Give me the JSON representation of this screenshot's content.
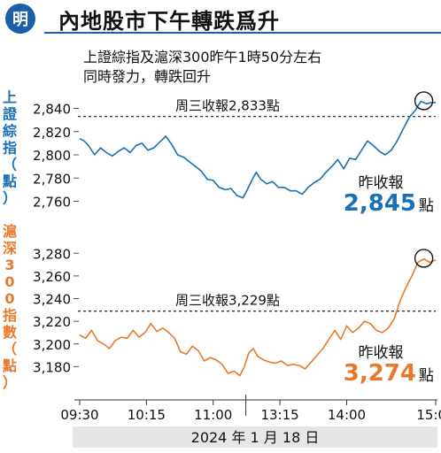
{
  "header": {
    "logo_text": "明",
    "title": "內地股市下午轉跌爲升"
  },
  "subtitle": {
    "line1": "上證綜指及滬深300昨午1時50分左右",
    "line2": "同時發力，轉跌回升"
  },
  "colors": {
    "blue": "#1a6fb5",
    "orange": "#e8792b",
    "brand": "#1a5fa8"
  },
  "chart_data": [
    {
      "type": "line",
      "series_label": "上證綜指（點）",
      "x_time": [
        "09:30",
        "10:15",
        "11:00",
        "13:15",
        "14:00",
        "15:00"
      ],
      "ylim": [
        2752,
        2848
      ],
      "yticks": [
        2840,
        2820,
        2800,
        2780,
        2760
      ],
      "prev_close_value": 2833,
      "prev_close_label": "周三收報2,833點",
      "close_caption": "昨收報",
      "close_value": "2,845",
      "close_unit": "點",
      "points": [
        [
          0,
          2814
        ],
        [
          3,
          2812
        ],
        [
          6,
          2808
        ],
        [
          10,
          2800
        ],
        [
          14,
          2806
        ],
        [
          18,
          2802
        ],
        [
          22,
          2799
        ],
        [
          26,
          2803
        ],
        [
          30,
          2806
        ],
        [
          34,
          2802
        ],
        [
          38,
          2808
        ],
        [
          42,
          2810
        ],
        [
          46,
          2804
        ],
        [
          50,
          2806
        ],
        [
          54,
          2811
        ],
        [
          58,
          2816
        ],
        [
          62,
          2809
        ],
        [
          66,
          2800
        ],
        [
          70,
          2798
        ],
        [
          74,
          2794
        ],
        [
          78,
          2790
        ],
        [
          82,
          2786
        ],
        [
          86,
          2779
        ],
        [
          90,
          2778
        ],
        [
          94,
          2772
        ],
        [
          98,
          2770
        ],
        [
          102,
          2771
        ],
        [
          106,
          2765
        ],
        [
          110,
          2763
        ],
        [
          113,
          2770
        ],
        [
          116,
          2778
        ],
        [
          119,
          2785
        ],
        [
          122,
          2779
        ],
        [
          126,
          2775
        ],
        [
          130,
          2777
        ],
        [
          134,
          2772
        ],
        [
          138,
          2772
        ],
        [
          142,
          2769
        ],
        [
          146,
          2769
        ],
        [
          150,
          2766
        ],
        [
          154,
          2772
        ],
        [
          158,
          2776
        ],
        [
          162,
          2779
        ],
        [
          166,
          2785
        ],
        [
          170,
          2790
        ],
        [
          174,
          2796
        ],
        [
          178,
          2788
        ],
        [
          182,
          2797
        ],
        [
          186,
          2796
        ],
        [
          190,
          2804
        ],
        [
          194,
          2812
        ],
        [
          198,
          2808
        ],
        [
          202,
          2803
        ],
        [
          206,
          2800
        ],
        [
          210,
          2804
        ],
        [
          214,
          2812
        ],
        [
          218,
          2822
        ],
        [
          222,
          2832
        ],
        [
          226,
          2838
        ],
        [
          230,
          2846
        ],
        [
          234,
          2844
        ],
        [
          237,
          2845
        ],
        [
          240,
          2845
        ]
      ]
    },
    {
      "type": "line",
      "series_label": "滬深300指數（點）",
      "x_time": [
        "09:30",
        "10:15",
        "11:00",
        "13:15",
        "14:00",
        "15:00"
      ],
      "ylim": [
        3160,
        3288
      ],
      "yticks": [
        3280,
        3260,
        3240,
        3220,
        3200,
        3180
      ],
      "prev_close_value": 3229,
      "prev_close_label": "周三收報3,229點",
      "close_caption": "昨收報",
      "close_value": "3,274",
      "close_unit": "點",
      "points": [
        [
          0,
          3208
        ],
        [
          4,
          3205
        ],
        [
          8,
          3212
        ],
        [
          12,
          3203
        ],
        [
          16,
          3200
        ],
        [
          20,
          3196
        ],
        [
          24,
          3203
        ],
        [
          28,
          3206
        ],
        [
          32,
          3205
        ],
        [
          36,
          3212
        ],
        [
          40,
          3206
        ],
        [
          44,
          3210
        ],
        [
          48,
          3218
        ],
        [
          52,
          3211
        ],
        [
          56,
          3214
        ],
        [
          60,
          3210
        ],
        [
          64,
          3205
        ],
        [
          68,
          3193
        ],
        [
          72,
          3191
        ],
        [
          76,
          3198
        ],
        [
          80,
          3194
        ],
        [
          84,
          3185
        ],
        [
          88,
          3188
        ],
        [
          92,
          3186
        ],
        [
          96,
          3182
        ],
        [
          100,
          3174
        ],
        [
          104,
          3176
        ],
        [
          108,
          3172
        ],
        [
          111,
          3180
        ],
        [
          114,
          3192
        ],
        [
          117,
          3196
        ],
        [
          120,
          3189
        ],
        [
          124,
          3186
        ],
        [
          128,
          3184
        ],
        [
          132,
          3183
        ],
        [
          136,
          3185
        ],
        [
          140,
          3181
        ],
        [
          144,
          3182
        ],
        [
          148,
          3181
        ],
        [
          152,
          3178
        ],
        [
          156,
          3184
        ],
        [
          160,
          3190
        ],
        [
          164,
          3196
        ],
        [
          168,
          3204
        ],
        [
          172,
          3212
        ],
        [
          176,
          3204
        ],
        [
          180,
          3216
        ],
        [
          184,
          3210
        ],
        [
          188,
          3214
        ],
        [
          192,
          3220
        ],
        [
          196,
          3218
        ],
        [
          200,
          3212
        ],
        [
          204,
          3210
        ],
        [
          208,
          3214
        ],
        [
          212,
          3222
        ],
        [
          216,
          3238
        ],
        [
          220,
          3250
        ],
        [
          224,
          3260
        ],
        [
          228,
          3272
        ],
        [
          232,
          3275
        ],
        [
          236,
          3272
        ],
        [
          240,
          3274
        ]
      ]
    }
  ],
  "x_axis": {
    "ticks": [
      "09:30",
      "10:15",
      "11:00",
      "13:15",
      "14:00",
      "15:00"
    ],
    "date_label": "2024 年 1 月 18 日"
  }
}
